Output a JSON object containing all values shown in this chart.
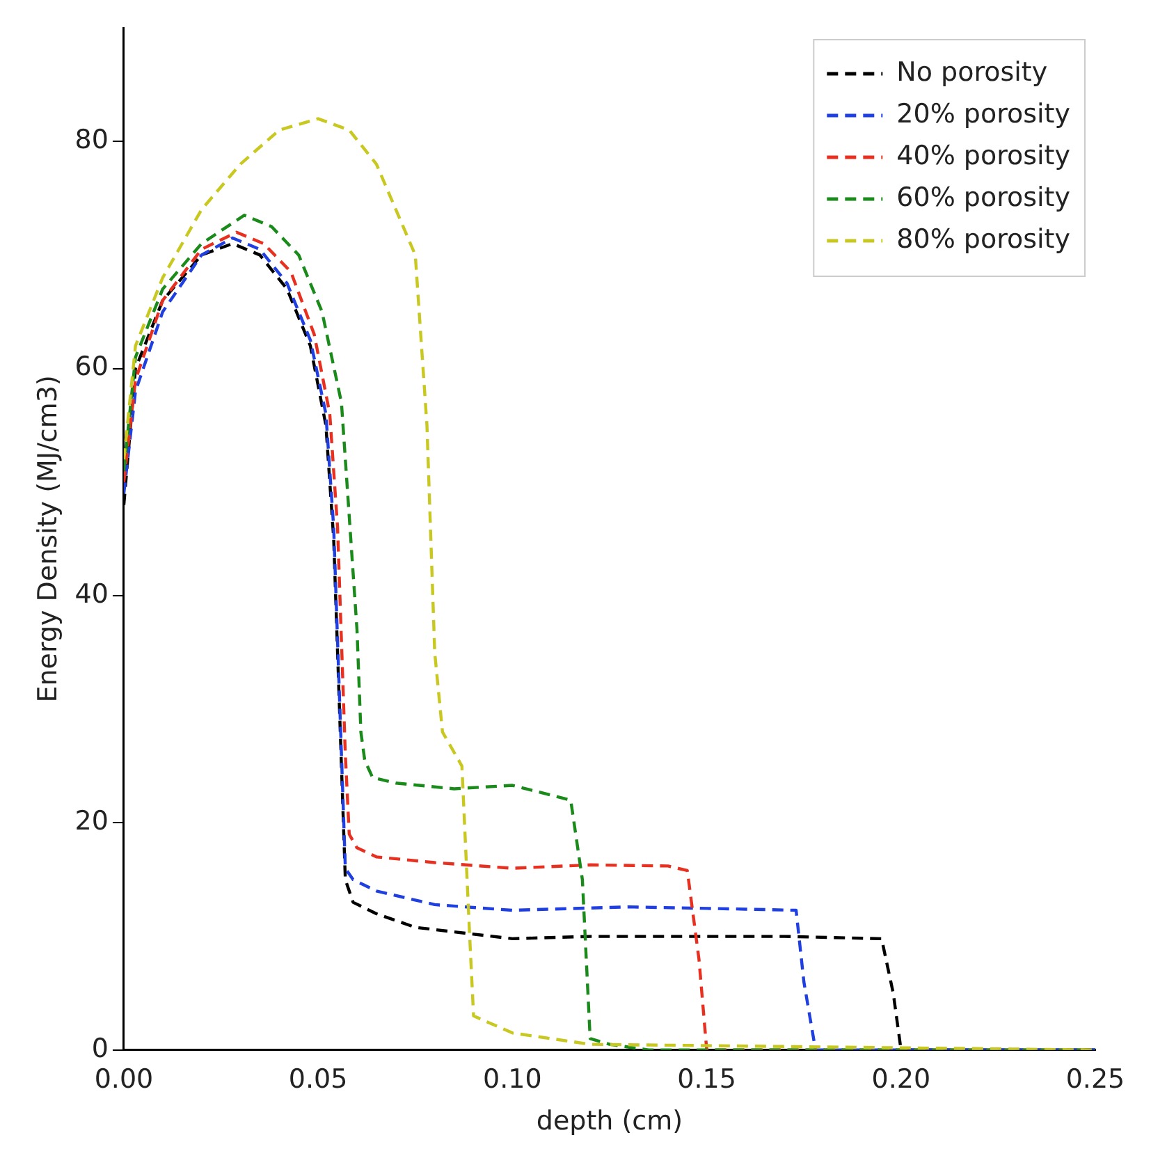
{
  "chart_data": {
    "type": "line",
    "xlabel": "depth (cm)",
    "ylabel": "Energy Density (MJ/cm3)",
    "xlim": [
      0,
      0.25
    ],
    "ylim": [
      0,
      90
    ],
    "xticks": [
      {
        "value": 0,
        "label": "0.00"
      },
      {
        "value": 0.05,
        "label": "0.05"
      },
      {
        "value": 0.1,
        "label": "0.10"
      },
      {
        "value": 0.15,
        "label": "0.15"
      },
      {
        "value": 0.2,
        "label": "0.20"
      },
      {
        "value": 0.25,
        "label": "0.25"
      }
    ],
    "yticks": [
      0,
      20,
      40,
      60,
      80
    ],
    "grid": false,
    "legend": "top right",
    "line_style": "dashed",
    "marker": "none",
    "series": [
      {
        "name": "No porosity",
        "color": "#000000",
        "x": [
          0,
          0.003,
          0.01,
          0.02,
          0.028,
          0.035,
          0.042,
          0.048,
          0.052,
          0.054,
          0.055,
          0.056,
          0.057,
          0.059,
          0.065,
          0.075,
          0.09,
          0.1,
          0.12,
          0.15,
          0.17,
          0.195,
          0.198,
          0.2,
          0.25
        ],
        "values": [
          48,
          60,
          66,
          70,
          71,
          70,
          67,
          62,
          55,
          45,
          35,
          25,
          15,
          13,
          12,
          10.8,
          10.2,
          9.8,
          10,
          10,
          10,
          9.8,
          5,
          0,
          0
        ]
      },
      {
        "name": "20% porosity",
        "color": "#1f3fe0",
        "x": [
          0,
          0.003,
          0.01,
          0.02,
          0.028,
          0.035,
          0.042,
          0.048,
          0.052,
          0.054,
          0.055,
          0.056,
          0.057,
          0.059,
          0.065,
          0.08,
          0.1,
          0.13,
          0.16,
          0.173,
          0.175,
          0.178,
          0.25
        ],
        "values": [
          49,
          58,
          65,
          70,
          71.5,
          70.5,
          67.5,
          62.5,
          56,
          46,
          36,
          26,
          16,
          15,
          14,
          12.8,
          12.3,
          12.6,
          12.4,
          12.3,
          6,
          0,
          0
        ]
      },
      {
        "name": "40% porosity",
        "color": "#e83020",
        "x": [
          0,
          0.003,
          0.01,
          0.02,
          0.029,
          0.036,
          0.043,
          0.049,
          0.053,
          0.055,
          0.056,
          0.057,
          0.058,
          0.06,
          0.065,
          0.08,
          0.1,
          0.12,
          0.14,
          0.145,
          0.148,
          0.15,
          0.25
        ],
        "values": [
          50,
          59,
          66,
          70.5,
          72,
          71,
          68.5,
          63,
          56,
          46,
          36,
          26,
          19,
          17.8,
          17,
          16.5,
          16,
          16.3,
          16.2,
          15.8,
          8,
          0,
          0
        ]
      },
      {
        "name": "60% porosity",
        "color": "#1a8a1a",
        "x": [
          0,
          0.003,
          0.01,
          0.02,
          0.031,
          0.038,
          0.045,
          0.051,
          0.056,
          0.058,
          0.06,
          0.061,
          0.062,
          0.064,
          0.07,
          0.085,
          0.1,
          0.115,
          0.118,
          0.12,
          0.125,
          0.135,
          0.25
        ],
        "values": [
          51,
          61,
          67,
          71,
          73.5,
          72.5,
          70,
          65,
          57,
          47,
          37,
          28,
          25.5,
          24,
          23.5,
          23,
          23.3,
          22,
          15,
          1,
          0.5,
          0,
          0
        ]
      },
      {
        "name": "80% porosity",
        "color": "#c8c820",
        "x": [
          0,
          0.003,
          0.01,
          0.02,
          0.03,
          0.04,
          0.05,
          0.058,
          0.065,
          0.07,
          0.075,
          0.078,
          0.08,
          0.082,
          0.087,
          0.089,
          0.09,
          0.1,
          0.12,
          0.25
        ],
        "values": [
          52,
          62,
          68,
          74,
          78,
          81,
          82,
          81,
          78,
          74,
          70,
          55,
          35,
          28,
          25,
          10,
          3,
          1.5,
          0.5,
          0
        ]
      }
    ]
  }
}
